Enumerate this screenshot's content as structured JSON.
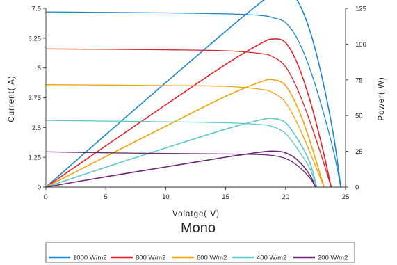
{
  "chart_data": {
    "type": "line",
    "title": "Mono",
    "xlabel": "Volatge( V)",
    "ylabel_left": "Current( A)",
    "ylabel_right": "Power( W)",
    "xlim": [
      0,
      25
    ],
    "ylim_left": [
      0,
      7.5
    ],
    "ylim_right": [
      0,
      125
    ],
    "x_ticks": [
      "0",
      "5",
      "10",
      "15",
      "20",
      "25"
    ],
    "y_left_ticks": [
      "0",
      "1.25",
      "2.5",
      "3.75",
      "5",
      "6.25",
      "7.5"
    ],
    "y_right_ticks": [
      "0",
      "25",
      "50",
      "75",
      "100",
      "125"
    ],
    "grid": false,
    "legend_position": "bottom",
    "series": [
      {
        "name": "1000 W/m2",
        "color": "#1a86cf",
        "current": [
          [
            0,
            7.35
          ],
          [
            5,
            7.33
          ],
          [
            10,
            7.31
          ],
          [
            15,
            7.27
          ],
          [
            18,
            7.2
          ],
          [
            19,
            7.1
          ],
          [
            20,
            6.9
          ],
          [
            21,
            6.2
          ],
          [
            22,
            5.0
          ],
          [
            23,
            3.4
          ],
          [
            24,
            1.5
          ],
          [
            24.6,
            0
          ]
        ],
        "power": [
          [
            0,
            0
          ],
          [
            5,
            36.7
          ],
          [
            10,
            73.1
          ],
          [
            15,
            109
          ],
          [
            18,
            129.6
          ],
          [
            19,
            134.9
          ],
          [
            20,
            138
          ],
          [
            21,
            130.2
          ],
          [
            22,
            110
          ],
          [
            23,
            78.2
          ],
          [
            24,
            36
          ],
          [
            24.6,
            0
          ]
        ]
      },
      {
        "name": "800 W/m2",
        "color": "#e12127",
        "current": [
          [
            0,
            5.8
          ],
          [
            5,
            5.78
          ],
          [
            10,
            5.76
          ],
          [
            15,
            5.72
          ],
          [
            18,
            5.6
          ],
          [
            19,
            5.45
          ],
          [
            20,
            5.05
          ],
          [
            21,
            4.1
          ],
          [
            22,
            2.8
          ],
          [
            23,
            1.3
          ],
          [
            23.8,
            0
          ]
        ],
        "power": [
          [
            0,
            0
          ],
          [
            5,
            28.9
          ],
          [
            10,
            57.6
          ],
          [
            15,
            85.8
          ],
          [
            18,
            100.8
          ],
          [
            19,
            103.6
          ],
          [
            20,
            101
          ],
          [
            21,
            86.1
          ],
          [
            22,
            61.6
          ],
          [
            23,
            29.9
          ],
          [
            23.8,
            0
          ]
        ]
      },
      {
        "name": "600 W/m2",
        "color": "#f5a20a",
        "current": [
          [
            0,
            4.3
          ],
          [
            5,
            4.28
          ],
          [
            10,
            4.26
          ],
          [
            15,
            4.23
          ],
          [
            18,
            4.1
          ],
          [
            19,
            3.95
          ],
          [
            20,
            3.55
          ],
          [
            21,
            2.65
          ],
          [
            22,
            1.5
          ],
          [
            23.2,
            0
          ]
        ],
        "power": [
          [
            0,
            0
          ],
          [
            5,
            21.4
          ],
          [
            10,
            42.6
          ],
          [
            15,
            63.5
          ],
          [
            18,
            73.8
          ],
          [
            19,
            75
          ],
          [
            20,
            71
          ],
          [
            21,
            55.7
          ],
          [
            22,
            33
          ],
          [
            23.2,
            0
          ]
        ]
      },
      {
        "name": "400 W/m2",
        "color": "#5cc8c8",
        "current": [
          [
            0,
            2.8
          ],
          [
            5,
            2.77
          ],
          [
            10,
            2.74
          ],
          [
            15,
            2.7
          ],
          [
            18,
            2.62
          ],
          [
            19,
            2.52
          ],
          [
            20,
            2.25
          ],
          [
            21,
            1.6
          ],
          [
            22,
            0.8
          ],
          [
            22.6,
            0
          ]
        ],
        "power": [
          [
            0,
            0
          ],
          [
            5,
            13.9
          ],
          [
            10,
            27.4
          ],
          [
            15,
            40.5
          ],
          [
            18,
            47.2
          ],
          [
            19,
            47.9
          ],
          [
            20,
            45
          ],
          [
            21,
            33.6
          ],
          [
            22,
            17.6
          ],
          [
            22.6,
            0
          ]
        ]
      },
      {
        "name": "200 W/m2",
        "color": "#6d2577",
        "current": [
          [
            0,
            1.48
          ],
          [
            5,
            1.44
          ],
          [
            10,
            1.41
          ],
          [
            15,
            1.39
          ],
          [
            18,
            1.36
          ],
          [
            19,
            1.32
          ],
          [
            20,
            1.2
          ],
          [
            21,
            0.9
          ],
          [
            22,
            0.4
          ],
          [
            22.5,
            0
          ]
        ],
        "power": [
          [
            0,
            0
          ],
          [
            5,
            7.2
          ],
          [
            10,
            14.1
          ],
          [
            15,
            20.9
          ],
          [
            18,
            24.5
          ],
          [
            19,
            25.1
          ],
          [
            20,
            24
          ],
          [
            21,
            18.9
          ],
          [
            22,
            8.8
          ],
          [
            22.5,
            0
          ]
        ]
      }
    ]
  }
}
